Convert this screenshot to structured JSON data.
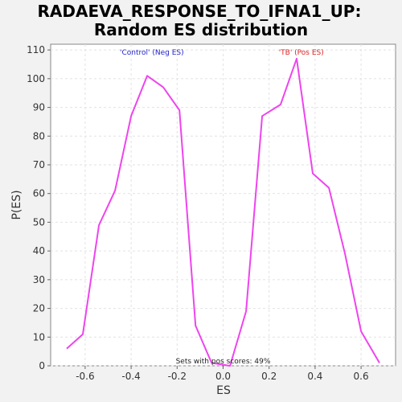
{
  "chart_data": {
    "type": "line",
    "title": "RADAEVA_RESPONSE_TO_IFNA1_UP:",
    "subtitle": "Random ES distribution",
    "xlabel": "ES",
    "ylabel": "P(ES)",
    "xlim": [
      -0.75,
      0.75
    ],
    "ylim": [
      0,
      112
    ],
    "x_ticks": [
      -0.6,
      -0.4,
      -0.2,
      0.0,
      0.2,
      0.4,
      0.6
    ],
    "x_tick_labels": [
      "-0.6",
      "-0.4",
      "-0.2",
      "0.0",
      "0.2",
      "0.4",
      "0.6"
    ],
    "y_ticks": [
      0,
      10,
      20,
      30,
      40,
      50,
      60,
      70,
      80,
      90,
      100,
      110
    ],
    "y_tick_labels": [
      "0",
      "10",
      "20",
      "30",
      "40",
      "50",
      "60",
      "70",
      "80",
      "90",
      "100",
      "110"
    ],
    "grid": true,
    "series": [
      {
        "color": "#ee44ee",
        "x": [
          -0.68,
          -0.61,
          -0.54,
          -0.47,
          -0.4,
          -0.33,
          -0.26,
          -0.19,
          -0.12,
          -0.05,
          0.03,
          0.1,
          0.17,
          0.25,
          0.32,
          0.39,
          0.46,
          0.53,
          0.6,
          0.68
        ],
        "y": [
          6,
          11,
          49,
          61,
          87,
          101,
          97,
          89,
          14,
          1,
          0,
          19,
          87,
          91,
          107,
          67,
          62,
          39,
          12,
          1
        ]
      }
    ],
    "annotations": {
      "neg_label": "'Control' (Neg ES)",
      "neg_color": "#2222cc",
      "pos_label": "'TB' (Pos ES)",
      "pos_color": "#dd2222",
      "footer": "Sets with pos scores: 49%"
    }
  }
}
